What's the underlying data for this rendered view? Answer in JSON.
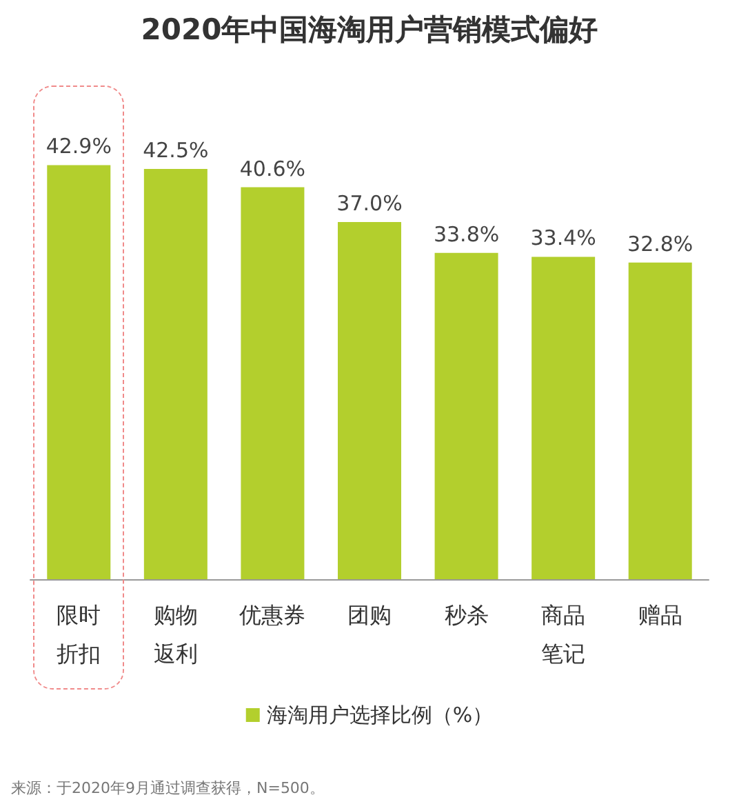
{
  "chart_data": {
    "type": "bar",
    "title": "2020年中国海淘用户营销模式偏好",
    "categories": [
      "限时折扣",
      "购物返利",
      "优惠券",
      "团购",
      "秒杀",
      "商品笔记",
      "赠品"
    ],
    "series": [
      {
        "name": "海淘用户选择比例（%）",
        "color": "#b3cf2d",
        "values": [
          42.9,
          42.5,
          40.6,
          37.0,
          33.8,
          33.4,
          32.8
        ],
        "value_labels": [
          "42.9%",
          "42.5%",
          "40.6%",
          "37.0%",
          "33.8%",
          "33.4%",
          "32.8%"
        ]
      }
    ],
    "legend": "bottom",
    "annotations": [
      "来源：于2020年9月通过调查获得，N=500。"
    ]
  }
}
